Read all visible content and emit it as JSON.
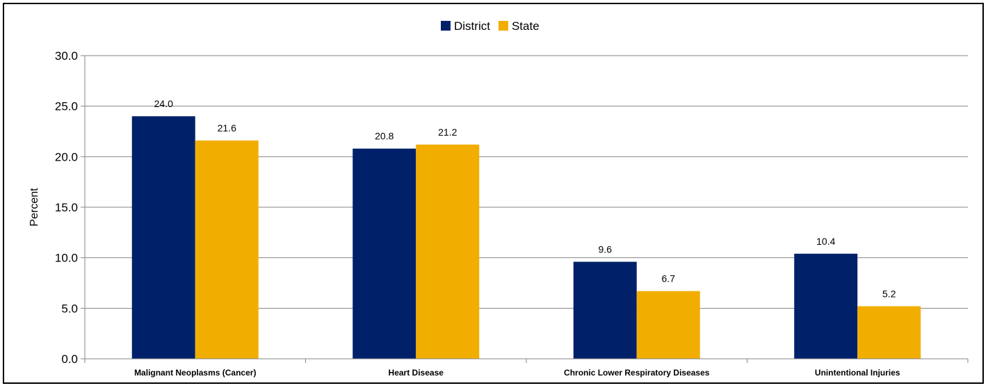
{
  "chart_data": {
    "type": "bar",
    "title": "",
    "xlabel": "",
    "ylabel": "Percent",
    "ylim": [
      0,
      30
    ],
    "yticks": [
      "0.0",
      "5.0",
      "10.0",
      "15.0",
      "20.0",
      "25.0",
      "30.0"
    ],
    "grid": true,
    "legend_position": "top-center",
    "categories": [
      "Malignant Neoplasms (Cancer)",
      "Heart Disease",
      "Chronic Lower Respiratory Diseases",
      "Unintentional Injuries"
    ],
    "series": [
      {
        "name": "District",
        "color": "#002169",
        "values": [
          24.0,
          20.8,
          9.6,
          10.4
        ],
        "labels": [
          "24.0",
          "20.8",
          "9.6",
          "10.4"
        ]
      },
      {
        "name": "State",
        "color": "#F2AE00",
        "values": [
          21.6,
          21.2,
          6.7,
          5.2
        ],
        "labels": [
          "21.6",
          "21.2",
          "6.7",
          "5.2"
        ]
      }
    ]
  }
}
